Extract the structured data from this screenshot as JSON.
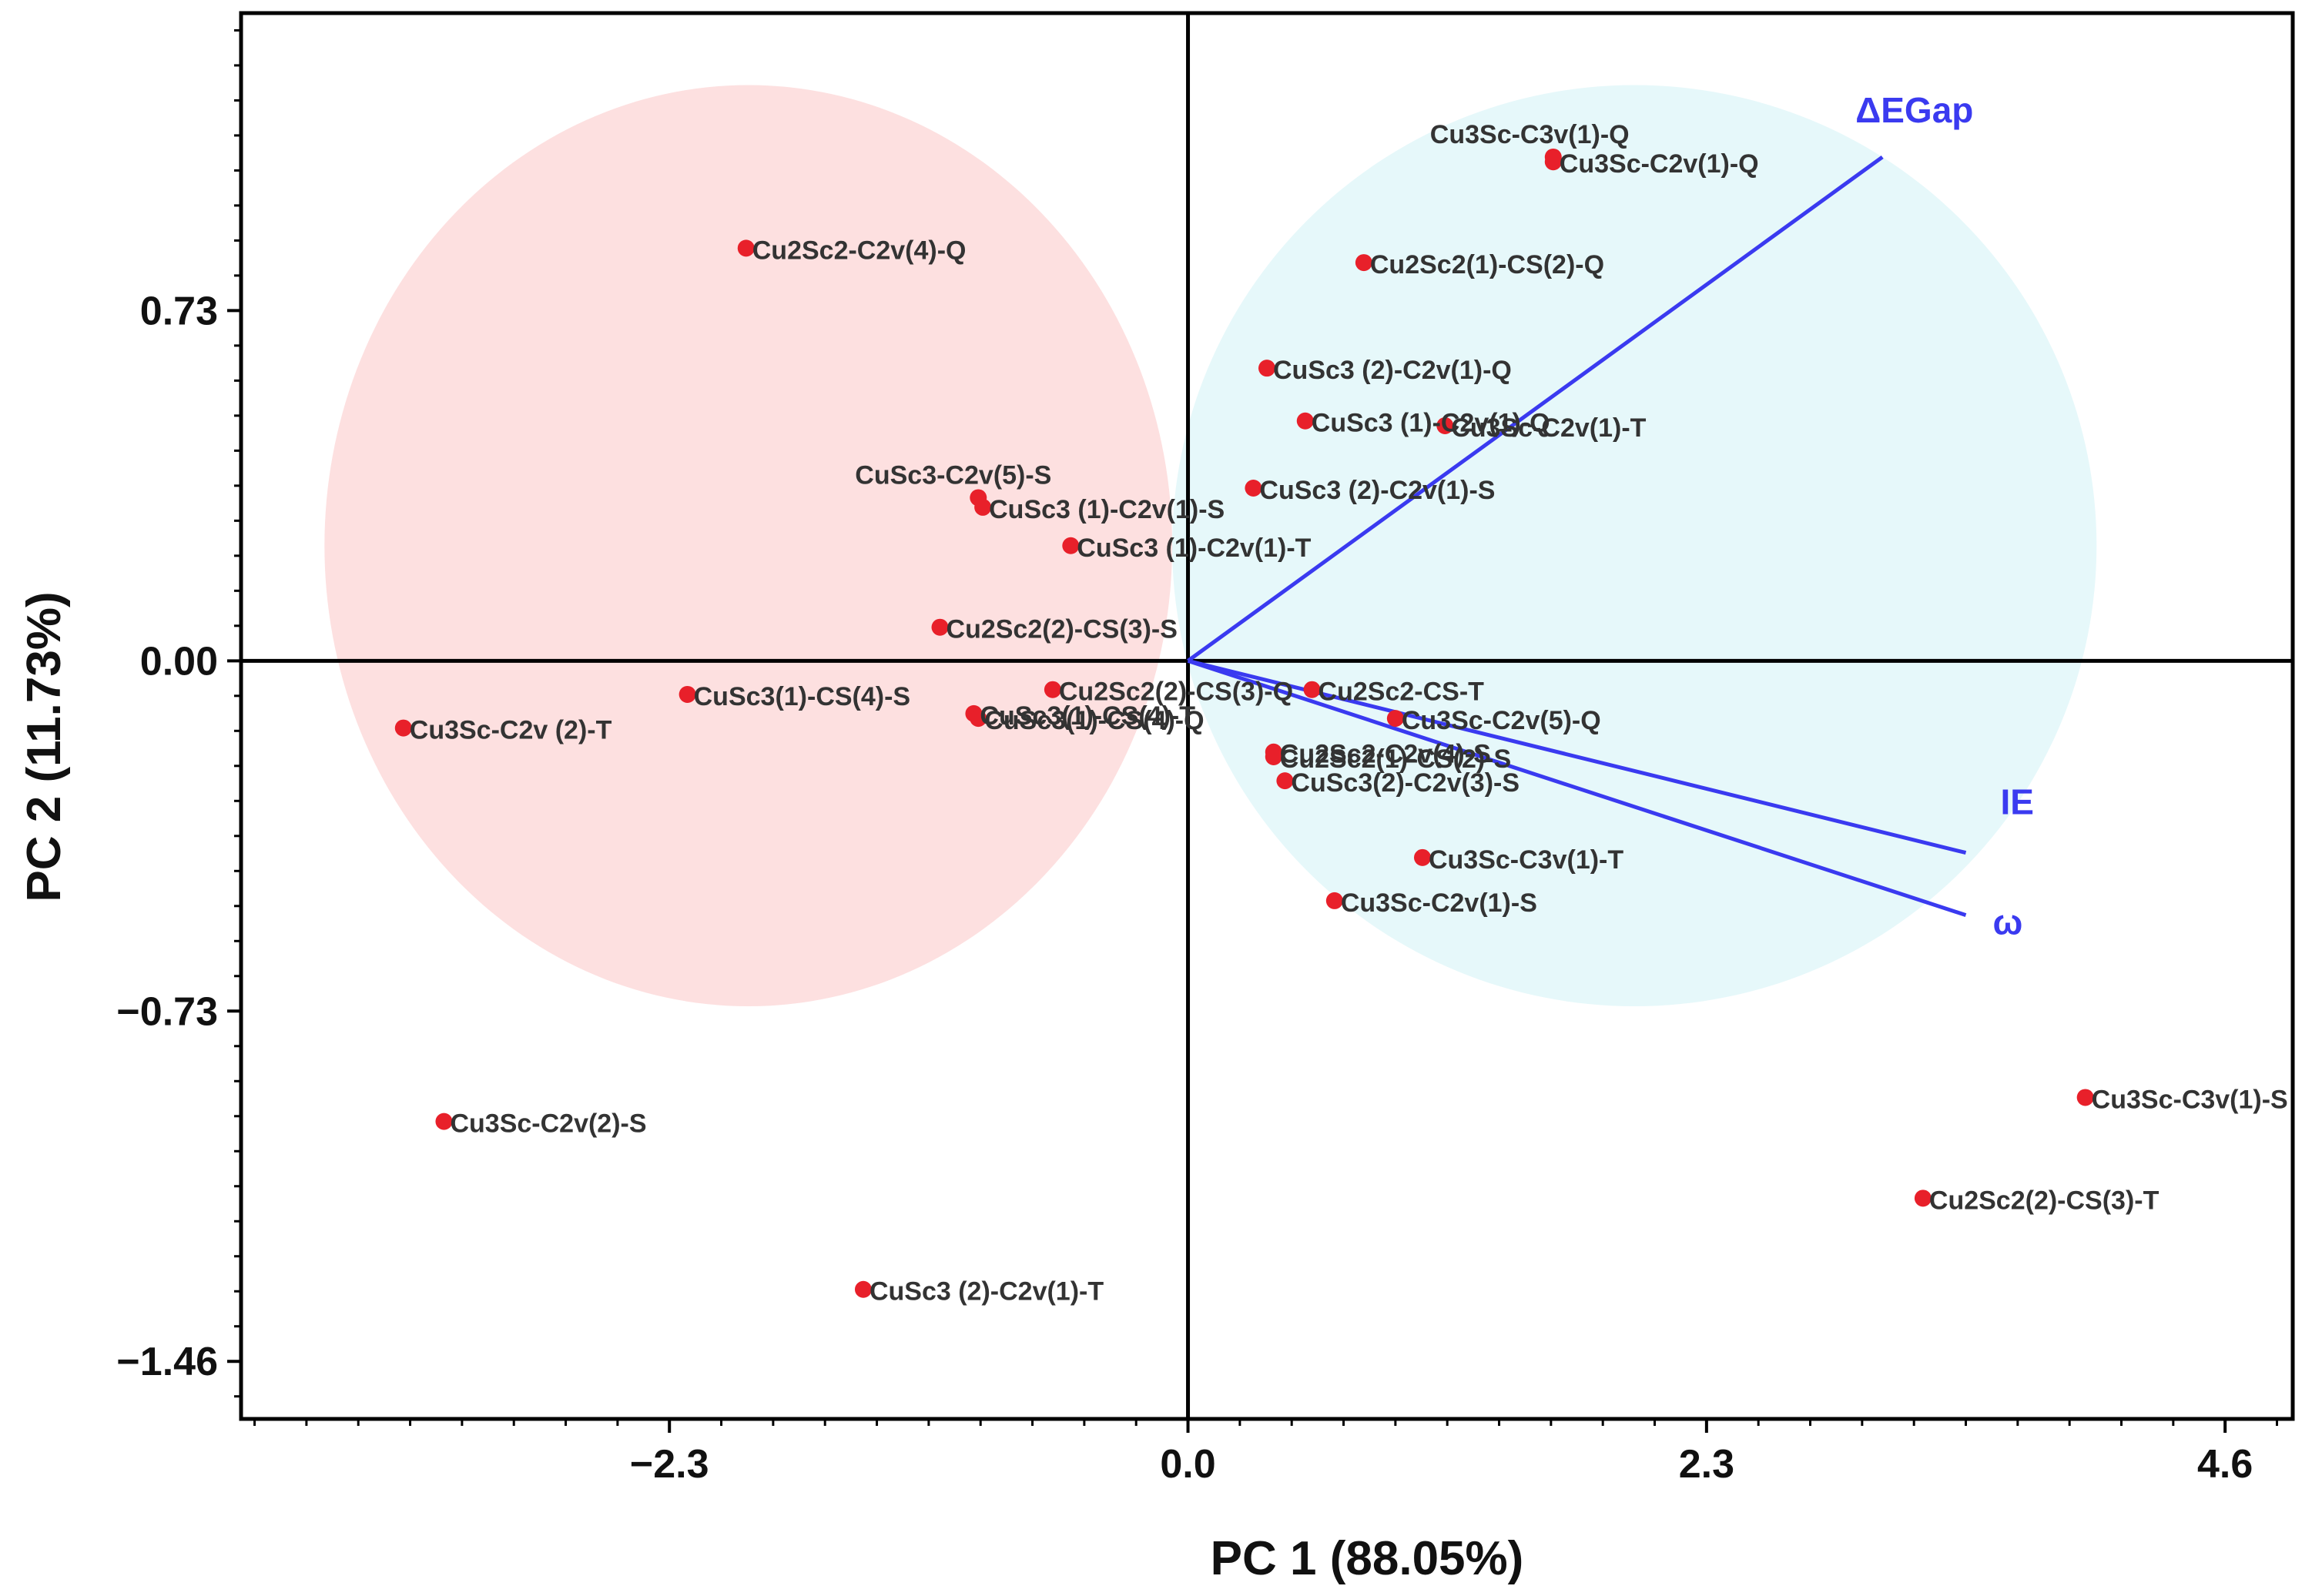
{
  "chart_data": {
    "type": "scatter",
    "subtype": "pca-biplot",
    "xlabel": "PC 1 (88.05%)",
    "ylabel": "PC 2 (11.73%)",
    "xlim": [
      -4.2,
      4.9
    ],
    "ylim": [
      -1.58,
      1.35
    ],
    "xticks": [
      -2.3,
      0.0,
      2.3,
      4.6
    ],
    "xtick_labels": [
      "−2.3",
      "0.0",
      "2.3",
      "4.6"
    ],
    "yticks": [
      0.73,
      0.0,
      -0.73,
      -1.46
    ],
    "ytick_labels": [
      "0.73",
      "0.00",
      "−0.73",
      "−1.46"
    ],
    "colors": {
      "points": "#e8202a",
      "vectors": "#3a3af0",
      "group_left": "#fde0e0",
      "group_right": "#e6f8fa",
      "axes": "#000000"
    },
    "groups": [
      {
        "name": "left-cluster",
        "center": [
          -1.95,
          0.24
        ],
        "radius": [
          1.88,
          0.96
        ],
        "color": "#fde0e0"
      },
      {
        "name": "right-cluster",
        "center": [
          1.98,
          0.24
        ],
        "radius": [
          2.05,
          0.96
        ],
        "color": "#e6f8fa"
      }
    ],
    "points": [
      {
        "label": "Cu3Sc-C3v(1)-Q",
        "x": 1.62,
        "y": 1.05
      },
      {
        "label": "Cu3Sc-C2v(1)-Q",
        "x": 1.62,
        "y": 1.04
      },
      {
        "label": "Cu2Sc2-C2v(4)-Q",
        "x": -1.96,
        "y": 0.86
      },
      {
        "label": "Cu2Sc2(1)-CS(2)-Q",
        "x": 0.78,
        "y": 0.83
      },
      {
        "label": "CuSc3 (2)-C2v(1)-Q",
        "x": 0.35,
        "y": 0.61
      },
      {
        "label": "CuSc3 (1)-C2v(1)-Q",
        "x": 0.52,
        "y": 0.5
      },
      {
        "label": "Cu3Sc-C2v(1)-T",
        "x": 1.14,
        "y": 0.49
      },
      {
        "label": "CuSc3-C2v(5)-S",
        "x": -0.93,
        "y": 0.34
      },
      {
        "label": "CuSc3 (1)-C2v(1)-S",
        "x": -0.91,
        "y": 0.32
      },
      {
        "label": "CuSc3 (2)-C2v(1)-S",
        "x": 0.29,
        "y": 0.36
      },
      {
        "label": "CuSc3 (1)-C2v(1)-T",
        "x": -0.52,
        "y": 0.24
      },
      {
        "label": "Cu2Sc2(2)-CS(3)-S",
        "x": -1.1,
        "y": 0.07
      },
      {
        "label": "CuSc3(1)-CS(4)-S",
        "x": -2.22,
        "y": -0.07
      },
      {
        "label": "Cu2Sc2(2)-CS(3)-Q",
        "x": -0.6,
        "y": -0.06
      },
      {
        "label": "Cu2Sc2-CS-T",
        "x": 0.55,
        "y": -0.06
      },
      {
        "label": "CuSc3(1)-CS(4)-T",
        "x": -0.95,
        "y": -0.11
      },
      {
        "label": "CuSc3(1)-CS(4)-Q",
        "x": -0.93,
        "y": -0.12
      },
      {
        "label": "Cu3Sc-C2v (2)-T",
        "x": -3.48,
        "y": -0.14
      },
      {
        "label": "Cu3Sc-C2v(5)-Q",
        "x": 0.92,
        "y": -0.12
      },
      {
        "label": "Cu2Sc2-C2v(4)-S",
        "x": 0.38,
        "y": -0.19
      },
      {
        "label": "Cu2Sc2(1)-CS(2)-S",
        "x": 0.38,
        "y": -0.2
      },
      {
        "label": "CuSc3(2)-C2v(3)-S",
        "x": 0.43,
        "y": -0.25
      },
      {
        "label": "Cu3Sc-C3v(1)-T",
        "x": 1.04,
        "y": -0.41
      },
      {
        "label": "Cu3Sc-C2v(1)-S",
        "x": 0.65,
        "y": -0.5
      },
      {
        "label": "Cu3Sc-C2v(2)-S",
        "x": -3.3,
        "y": -0.96
      },
      {
        "label": "CuSc3 (2)-C2v(1)-T",
        "x": -1.44,
        "y": -1.31
      },
      {
        "label": "Cu3Sc-C3v(1)-S",
        "x": 3.98,
        "y": -0.91
      },
      {
        "label": "Cu2Sc2(2)-CS(3)-T",
        "x": 3.26,
        "y": -1.12
      }
    ],
    "vectors": [
      {
        "label": "ΔEGap",
        "x": 3.08,
        "y": 1.05
      },
      {
        "label": "IE",
        "x": 3.45,
        "y": -0.4
      },
      {
        "label": "ω",
        "x": 3.45,
        "y": -0.53
      }
    ]
  }
}
